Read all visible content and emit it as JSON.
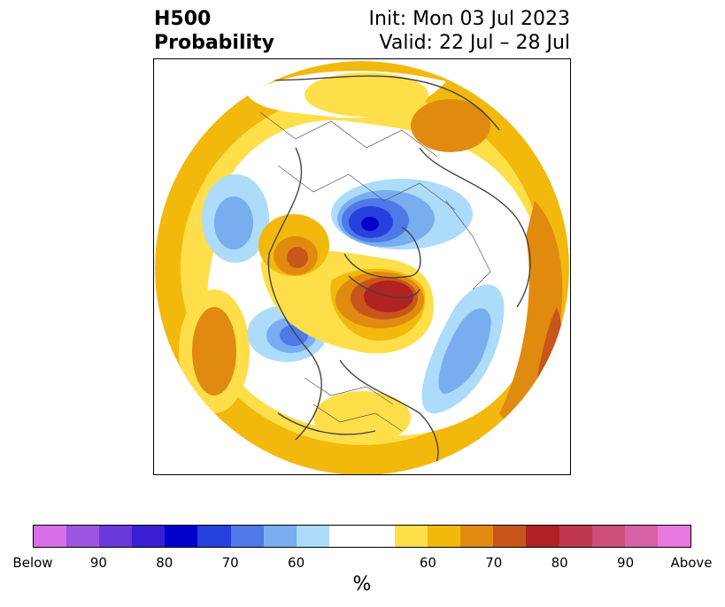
{
  "title": {
    "left_line1": "H500",
    "left_line2": "Probability",
    "right_line1": "Init: Mon 03 Jul 2023",
    "right_line2": "Valid: 22 Jul – 28 Jul"
  },
  "colorbar": {
    "below_colors": [
      "#d86fe8",
      "#9b55e0",
      "#6a38d8",
      "#3a1ed2",
      "#0000cc",
      "#2540dc",
      "#4f78e8",
      "#78aef0",
      "#acdcfa"
    ],
    "neutral_color": "#ffffff",
    "above_colors": [
      "#fedf49",
      "#f3b80c",
      "#e08b10",
      "#c85519",
      "#b12223",
      "#c0384e",
      "#cc4f7a",
      "#d861a5",
      "#e877e0"
    ],
    "tick_labels": [
      "Below",
      "90",
      "80",
      "70",
      "60",
      "60",
      "70",
      "80",
      "90",
      "Above"
    ],
    "unit_label": "%"
  }
}
